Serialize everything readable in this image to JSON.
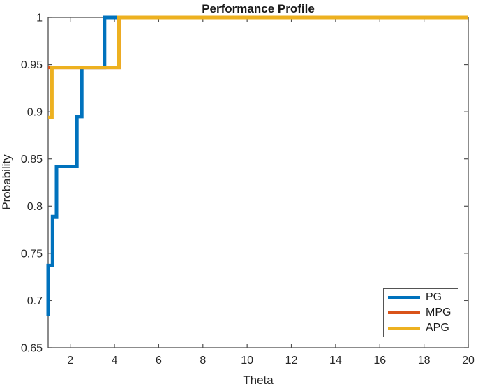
{
  "figure": {
    "background": "#ffffff",
    "axis_color": "#4f4f4f",
    "label_color": "#262626"
  },
  "chart_data": {
    "type": "line",
    "subtype": "step-performance-profile",
    "title": "Performance Profile",
    "xlabel": "Theta",
    "ylabel": "Probability",
    "xlim": [
      1,
      20
    ],
    "ylim": [
      0.65,
      1.0
    ],
    "xticks": [
      2,
      4,
      6,
      8,
      10,
      12,
      14,
      16,
      18,
      20
    ],
    "xtick_labels": [
      "2",
      "4",
      "6",
      "8",
      "10",
      "12",
      "14",
      "16",
      "18",
      "20"
    ],
    "yticks": [
      0.65,
      0.7,
      0.75,
      0.8,
      0.85,
      0.9,
      0.95,
      1.0
    ],
    "ytick_labels": [
      "0.65",
      "0.7",
      "0.75",
      "0.8",
      "0.85",
      "0.9",
      "0.95",
      "1"
    ],
    "grid": false,
    "box": true,
    "tick_direction": "in",
    "tick_length": 6,
    "line_width": 5,
    "legend_position": "lower right",
    "series": [
      {
        "name": "PG",
        "color": "#0072BD",
        "points": [
          [
            1,
            0.684
          ],
          [
            1,
            0.737
          ],
          [
            1.2,
            0.737
          ],
          [
            1.2,
            0.789
          ],
          [
            1.38,
            0.789
          ],
          [
            1.38,
            0.842
          ],
          [
            2.3,
            0.842
          ],
          [
            2.3,
            0.895
          ],
          [
            2.52,
            0.895
          ],
          [
            2.52,
            0.947
          ],
          [
            3.55,
            0.947
          ],
          [
            3.55,
            1
          ],
          [
            20,
            1
          ]
        ]
      },
      {
        "name": "MPG",
        "color": "#D95319",
        "points": [
          [
            1,
            0.947
          ],
          [
            4.2,
            0.947
          ],
          [
            4.2,
            1
          ],
          [
            20,
            1
          ]
        ]
      },
      {
        "name": "APG",
        "color": "#EDB120",
        "points": [
          [
            1,
            0.894
          ],
          [
            1.17,
            0.894
          ],
          [
            1.17,
            0.947
          ],
          [
            4.2,
            0.947
          ],
          [
            4.2,
            1
          ],
          [
            20,
            1
          ]
        ]
      }
    ]
  }
}
